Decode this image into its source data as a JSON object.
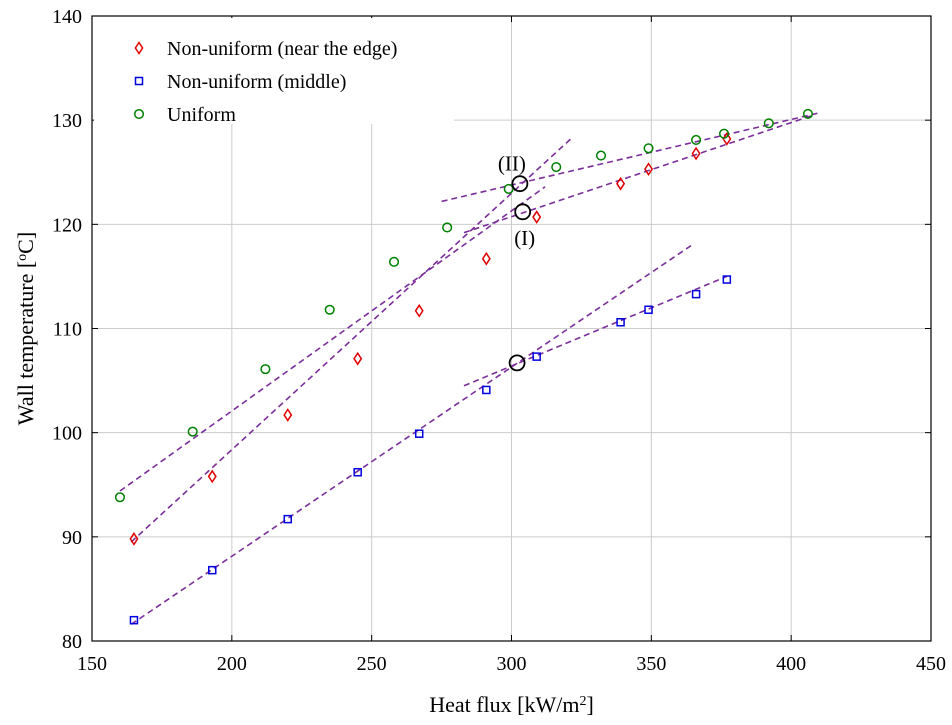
{
  "chart_data": {
    "type": "scatter",
    "title": "",
    "xlabel": "Heat flux [kW/m",
    "xlabel_sup": "2",
    "xlabel_end": "]",
    "ylabel": "Wall temperature [",
    "ylabel_sup": "o",
    "ylabel_end": "C]",
    "xlim": [
      150,
      450
    ],
    "ylim": [
      80,
      140
    ],
    "xticks": [
      150,
      200,
      250,
      300,
      350,
      400,
      450
    ],
    "yticks": [
      80,
      90,
      100,
      110,
      120,
      130,
      140
    ],
    "grid": true,
    "legend_position": "top-left",
    "colors": {
      "edge": "#e00000",
      "middle": "#0000e0",
      "uniform": "#008000",
      "fit": "#7b2d9a",
      "grid": "#cccccc"
    },
    "series": [
      {
        "name": "Non-uniform (near the edge)",
        "marker": "diamond",
        "color": "#e00000",
        "x": [
          165,
          193,
          220,
          245,
          267,
          291,
          309,
          339,
          349,
          366,
          377
        ],
        "y": [
          89.8,
          95.8,
          101.7,
          107.1,
          111.7,
          116.7,
          120.7,
          123.9,
          125.3,
          126.8,
          128.2
        ]
      },
      {
        "name": "Non-uniform (middle)",
        "marker": "square",
        "color": "#0000e0",
        "x": [
          165,
          193,
          220,
          245,
          267,
          291,
          309,
          339,
          349,
          366,
          377
        ],
        "y": [
          82.0,
          86.8,
          91.7,
          96.2,
          99.9,
          104.1,
          107.3,
          110.6,
          111.8,
          113.3,
          114.7
        ]
      },
      {
        "name": "Uniform",
        "marker": "circle",
        "color": "#008000",
        "x": [
          160,
          186,
          212,
          235,
          258,
          277,
          299,
          316,
          332,
          349,
          366,
          376,
          392,
          406
        ],
        "y": [
          93.8,
          100.1,
          106.1,
          111.8,
          116.4,
          119.7,
          123.4,
          125.5,
          126.6,
          127.3,
          128.1,
          128.7,
          129.7,
          130.6
        ]
      }
    ],
    "fit_lines": [
      {
        "x": [
          160,
          312
        ],
        "y": [
          94.4,
          123.6
        ]
      },
      {
        "x": [
          275,
          410
        ],
        "y": [
          122.2,
          130.7
        ]
      },
      {
        "x": [
          164,
          322
        ],
        "y": [
          89.5,
          128.4
        ]
      },
      {
        "x": [
          283,
          407
        ],
        "y": [
          119.2,
          130.4
        ]
      },
      {
        "x": [
          164,
          365
        ],
        "y": [
          81.6,
          118.1
        ]
      },
      {
        "x": [
          283,
          377
        ],
        "y": [
          104.5,
          115.0
        ]
      }
    ],
    "markers": [
      {
        "label": "(II)",
        "x": 303,
        "y": 123.9,
        "label_pos": "above-left"
      },
      {
        "label": "(I)",
        "x": 304,
        "y": 121.2,
        "label_pos": "below"
      },
      {
        "label": "",
        "x": 302,
        "y": 106.7,
        "label_pos": "none"
      }
    ]
  }
}
